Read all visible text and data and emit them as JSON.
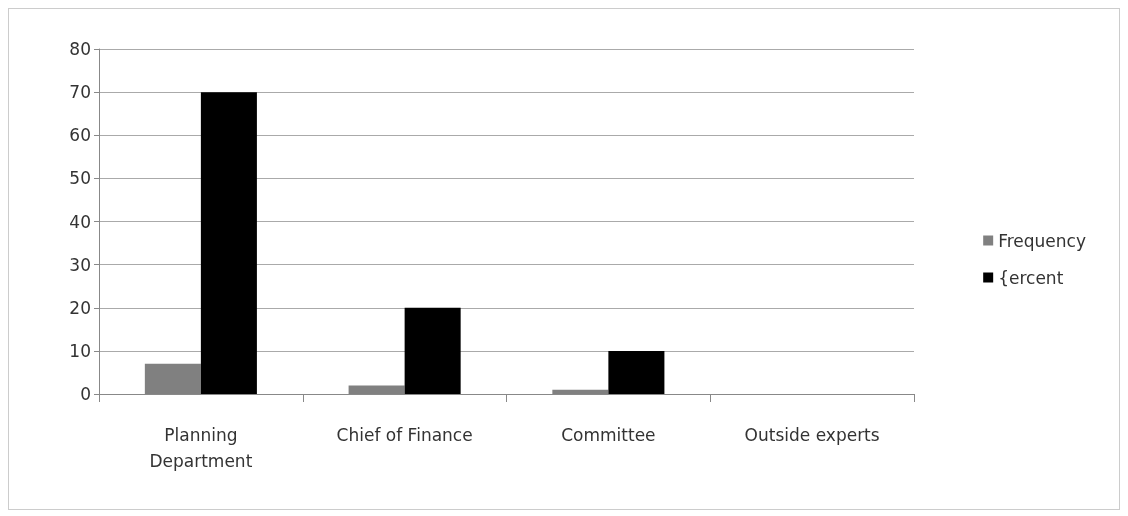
{
  "chart_data": {
    "type": "bar",
    "categories": [
      "Planning\nDepartment",
      "Chief of Finance",
      "Committee",
      "Outside experts"
    ],
    "series": [
      {
        "name": "Frequency",
        "color": "#808080",
        "values": [
          7,
          2,
          1,
          0
        ]
      },
      {
        "name": "{ercent",
        "color": "#000000",
        "values": [
          70,
          20,
          10,
          0
        ]
      }
    ],
    "ylim": [
      0,
      80
    ],
    "yticks": [
      0,
      10,
      20,
      30,
      40,
      50,
      60,
      70,
      80
    ],
    "grid": "y",
    "legend": "right"
  }
}
